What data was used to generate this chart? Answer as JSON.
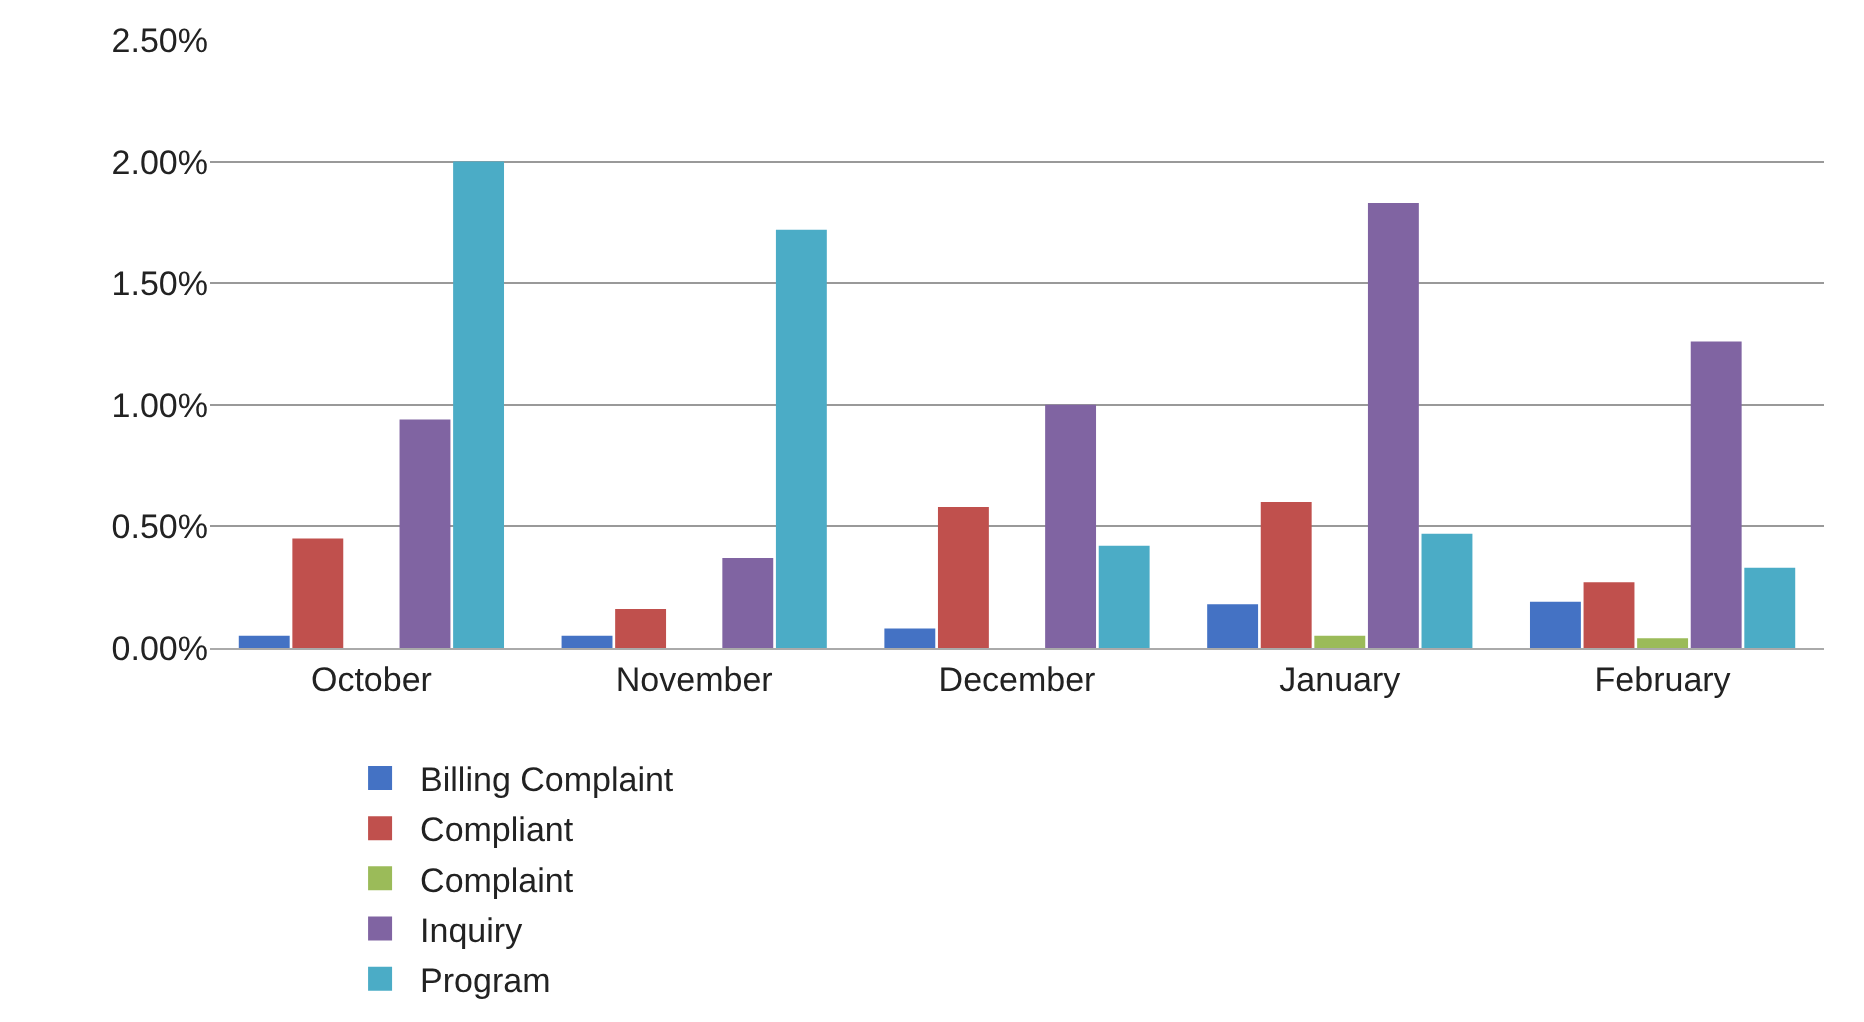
{
  "chart_data": {
    "type": "bar",
    "categories": [
      "October",
      "November",
      "December",
      "January",
      "February"
    ],
    "series": [
      {
        "name": "Billing Complaint",
        "color": "#4472c4",
        "values": [
          0.05,
          0.05,
          0.08,
          0.18,
          0.19
        ]
      },
      {
        "name": "Compliant",
        "color": "#c0504d",
        "values": [
          0.45,
          0.16,
          0.58,
          0.6,
          0.27
        ]
      },
      {
        "name": "Complaint",
        "color": "#9bbb59",
        "values": [
          0,
          0,
          0,
          0.05,
          0.04
        ]
      },
      {
        "name": "Inquiry",
        "color": "#8064a2",
        "values": [
          0.94,
          0.37,
          1.0,
          1.83,
          1.26
        ]
      },
      {
        "name": "Program",
        "color": "#4bacc6",
        "values": [
          2.0,
          1.72,
          0.42,
          0.47,
          0.33
        ]
      }
    ],
    "ylim": [
      0,
      2.5
    ],
    "yticks": [
      {
        "value": 0,
        "label": "0.00%"
      },
      {
        "value": 0.5,
        "label": "0.50%"
      },
      {
        "value": 1,
        "label": "1.00%"
      },
      {
        "value": 1.5,
        "label": "1.50%"
      },
      {
        "value": 2,
        "label": "2.00%"
      },
      {
        "value": 2.5,
        "label": "2.50%"
      }
    ],
    "grid": "y",
    "legend": "bottom"
  }
}
